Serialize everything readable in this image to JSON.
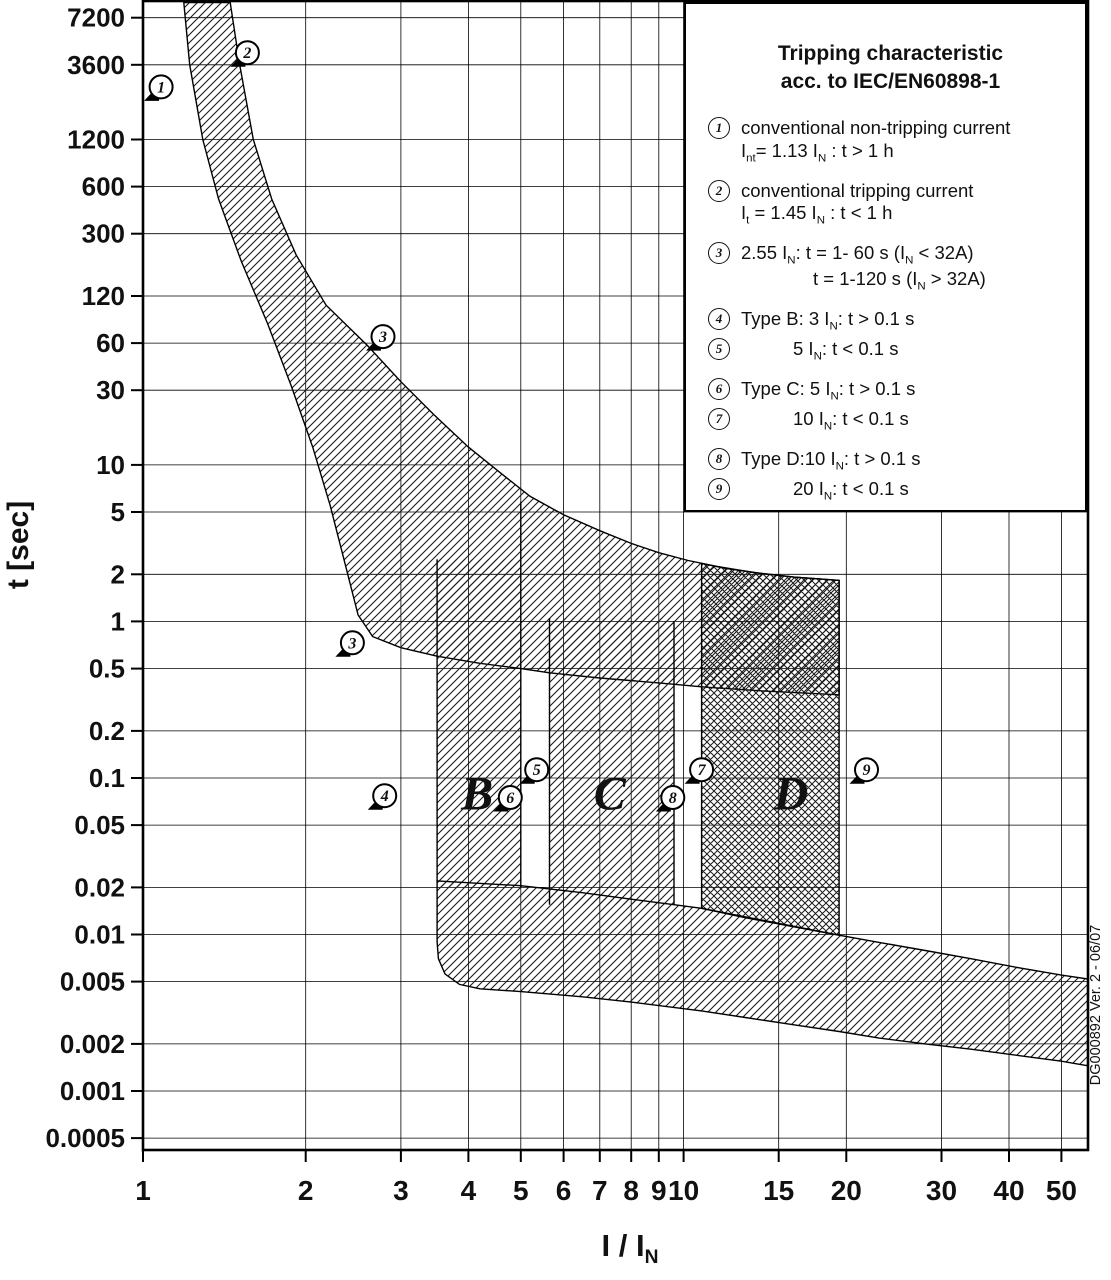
{
  "figure": {
    "watermark": "DG000892 Ver. 2 - 06/07"
  },
  "legend": {
    "title_line1": "Tripping characteristic",
    "title_line2": "acc. to IEC/EN60898-1",
    "items": [
      {
        "num": "1",
        "lines": [
          "conventional non-tripping current",
          "I_[nt]= 1.13 I_[N] : t > 1 h"
        ],
        "gap_before": false,
        "indent": false,
        "indent_line2": false
      },
      {
        "num": "2",
        "lines": [
          "conventional tripping current",
          "I_[t] = 1.45 I_[N] : t < 1 h"
        ],
        "gap_before": true,
        "indent": false,
        "indent_line2": false
      },
      {
        "num": "3",
        "lines": [
          "2.55 I_[N]: t = 1- 60 s (I_[N] < 32A)",
          "t = 1-120 s (I_[N] > 32A)"
        ],
        "gap_before": true,
        "indent": false,
        "indent_line2": true
      },
      {
        "num": "4",
        "lines": [
          "Type B: 3 I_[N]: t > 0.1 s"
        ],
        "gap_before": true,
        "indent": false,
        "indent_line2": false
      },
      {
        "num": "5",
        "lines": [
          "5 I_[N]: t < 0.1 s"
        ],
        "gap_before": false,
        "indent": true,
        "indent_line2": false
      },
      {
        "num": "6",
        "lines": [
          "Type C: 5 I_[N]: t > 0.1 s"
        ],
        "gap_before": true,
        "indent": false,
        "indent_line2": false
      },
      {
        "num": "7",
        "lines": [
          "10 I_[N]: t < 0.1 s"
        ],
        "gap_before": false,
        "indent": true,
        "indent_line2": false
      },
      {
        "num": "8",
        "lines": [
          "Type D:10 I_[N]: t > 0.1 s"
        ],
        "gap_before": true,
        "indent": false,
        "indent_line2": false
      },
      {
        "num": "9",
        "lines": [
          "20 I_[N]: t < 0.1 s"
        ],
        "gap_before": false,
        "indent": true,
        "indent_line2": false
      }
    ]
  },
  "chart_data": {
    "type": "area",
    "title": "Tripping characteristic acc. to IEC/EN60898-1",
    "xlabel": "I / I_[N]",
    "ylabel": "t [sec]",
    "x_scale": "log",
    "y_scale": "log",
    "xlim": [
      1,
      56
    ],
    "ylim": [
      0.00042,
      9200
    ],
    "grid": true,
    "x_ticks": [
      {
        "v": 1,
        "label": "1"
      },
      {
        "v": 2,
        "label": "2"
      },
      {
        "v": 3,
        "label": "3"
      },
      {
        "v": 4,
        "label": "4"
      },
      {
        "v": 5,
        "label": "5"
      },
      {
        "v": 6,
        "label": "6"
      },
      {
        "v": 7,
        "label": "7"
      },
      {
        "v": 8,
        "label": "8"
      },
      {
        "v": 9,
        "label": "9"
      },
      {
        "v": 10,
        "label": "10"
      },
      {
        "v": 15,
        "label": "15"
      },
      {
        "v": 20,
        "label": "20"
      },
      {
        "v": 30,
        "label": "30"
      },
      {
        "v": 40,
        "label": "40"
      },
      {
        "v": 50,
        "label": "50"
      }
    ],
    "y_ticks": [
      {
        "v": 7200,
        "label": "7200"
      },
      {
        "v": 3600,
        "label": "3600"
      },
      {
        "v": 1200,
        "label": "1200"
      },
      {
        "v": 600,
        "label": "600"
      },
      {
        "v": 300,
        "label": "300"
      },
      {
        "v": 120,
        "label": "120"
      },
      {
        "v": 60,
        "label": "60"
      },
      {
        "v": 30,
        "label": "30"
      },
      {
        "v": 10,
        "label": "10"
      },
      {
        "v": 5,
        "label": "5"
      },
      {
        "v": 2,
        "label": "2"
      },
      {
        "v": 1,
        "label": "1"
      },
      {
        "v": 0.5,
        "label": "0.5"
      },
      {
        "v": 0.2,
        "label": "0.2"
      },
      {
        "v": 0.1,
        "label": "0.1"
      },
      {
        "v": 0.05,
        "label": "0.05"
      },
      {
        "v": 0.02,
        "label": "0.02"
      },
      {
        "v": 0.01,
        "label": "0.01"
      },
      {
        "v": 0.005,
        "label": "0.005"
      },
      {
        "v": 0.002,
        "label": "0.002"
      },
      {
        "v": 0.001,
        "label": "0.001"
      },
      {
        "v": 0.0005,
        "label": "0.0005"
      }
    ],
    "types": [
      {
        "name": "B",
        "instantaneous_trip_range": "3 to 5 I_N"
      },
      {
        "name": "C",
        "instantaneous_trip_range": "5 to 10 I_N"
      },
      {
        "name": "D",
        "instantaneous_trip_range": "10 to 20 I_N"
      }
    ],
    "bands": {
      "thermal_lower": [
        [
          1.19,
          9000
        ],
        [
          1.22,
          3600
        ],
        [
          1.29,
          1200
        ],
        [
          1.38,
          500
        ],
        [
          1.52,
          200
        ],
        [
          1.7,
          80
        ],
        [
          1.88,
          32
        ],
        [
          2.06,
          13
        ],
        [
          2.22,
          5.5
        ],
        [
          2.36,
          2.4
        ],
        [
          2.5,
          1.1
        ],
        [
          2.66,
          0.8
        ],
        [
          3.0,
          0.68
        ],
        [
          3.5,
          0.6
        ],
        [
          4.2,
          0.54
        ],
        [
          5.0,
          0.5
        ],
        [
          5.65,
          0.47
        ],
        [
          7.0,
          0.435
        ],
        [
          9.0,
          0.405
        ],
        [
          11.0,
          0.38
        ],
        [
          14.0,
          0.36
        ],
        [
          19.4,
          0.34
        ]
      ],
      "thermal_upper": [
        [
          1.45,
          9000
        ],
        [
          1.51,
          3600
        ],
        [
          1.6,
          1200
        ],
        [
          1.73,
          500
        ],
        [
          1.92,
          220
        ],
        [
          2.18,
          105
        ],
        [
          2.6,
          58
        ],
        [
          3.0,
          34
        ],
        [
          3.45,
          21
        ],
        [
          4.0,
          13
        ],
        [
          4.6,
          8.8
        ],
        [
          5.2,
          6.3
        ],
        [
          6.0,
          4.8
        ],
        [
          7.0,
          3.8
        ],
        [
          8.0,
          3.15
        ],
        [
          9.0,
          2.75
        ],
        [
          10.2,
          2.45
        ],
        [
          11.5,
          2.25
        ],
        [
          13.5,
          2.05
        ],
        [
          16.0,
          1.92
        ],
        [
          19.4,
          1.83
        ]
      ],
      "type_b_strip": [
        [
          3.5,
          2.5
        ],
        [
          5.0,
          2.5
        ],
        [
          5.0,
          0.02
        ],
        [
          3.5,
          0.02
        ]
      ],
      "type_b_edges": [
        [
          [
            3.5,
            2.5
          ],
          [
            3.5,
            0.022
          ]
        ],
        [
          [
            5.0,
            5.8
          ],
          [
            5.0,
            0.02
          ]
        ]
      ],
      "type_c_strip": [
        [
          5.65,
          1.05
        ],
        [
          9.6,
          1.05
        ],
        [
          9.6,
          0.0155
        ],
        [
          5.65,
          0.0155
        ]
      ],
      "type_c_edges": [
        [
          [
            5.65,
            1.05
          ],
          [
            5.65,
            0.0155
          ]
        ],
        [
          [
            9.6,
            1.0
          ],
          [
            9.6,
            0.0155
          ]
        ]
      ],
      "type_d_strip": [
        [
          10.8,
          2.35
        ],
        [
          12.0,
          2.18
        ],
        [
          14.0,
          2.02
        ],
        [
          16.0,
          1.92
        ],
        [
          19.4,
          1.83
        ],
        [
          19.4,
          0.0099
        ],
        [
          10.8,
          0.0147
        ]
      ],
      "bottom_band": [
        [
          3.5,
          0.022
        ],
        [
          5.0,
          0.0205
        ],
        [
          6.5,
          0.0185
        ],
        [
          8.0,
          0.0168
        ],
        [
          9.6,
          0.0155
        ],
        [
          10.8,
          0.0147
        ],
        [
          13,
          0.0128
        ],
        [
          16,
          0.0112
        ],
        [
          19.4,
          0.0099
        ],
        [
          23,
          0.0089
        ],
        [
          28,
          0.0079
        ],
        [
          34,
          0.007
        ],
        [
          42,
          0.0061
        ],
        [
          50,
          0.0055
        ],
        [
          56,
          0.0052
        ],
        [
          56,
          0.00145
        ],
        [
          50,
          0.00155
        ],
        [
          42,
          0.00168
        ],
        [
          34,
          0.00185
        ],
        [
          28,
          0.002
        ],
        [
          23,
          0.00218
        ],
        [
          19.4,
          0.0024
        ],
        [
          16,
          0.00265
        ],
        [
          13,
          0.00295
        ],
        [
          10.8,
          0.00325
        ],
        [
          8.0,
          0.0037
        ],
        [
          6.5,
          0.004
        ],
        [
          5.0,
          0.00432
        ],
        [
          4.2,
          0.0045
        ],
        [
          3.85,
          0.0048
        ],
        [
          3.62,
          0.0056
        ],
        [
          3.52,
          0.007
        ],
        [
          3.5,
          0.009
        ]
      ]
    },
    "markers": [
      {
        "n": "1",
        "x": 1.08,
        "t": 2600
      },
      {
        "n": "2",
        "x": 1.56,
        "t": 4300
      },
      {
        "n": "3",
        "x": 2.78,
        "t": 66
      },
      {
        "n": "3",
        "x": 2.44,
        "t": 0.73
      },
      {
        "n": "4",
        "x": 2.8,
        "t": 0.077
      },
      {
        "n": "5",
        "x": 5.35,
        "t": 0.113
      },
      {
        "n": "6",
        "x": 4.78,
        "t": 0.075
      },
      {
        "n": "7",
        "x": 10.8,
        "t": 0.113
      },
      {
        "n": "8",
        "x": 9.55,
        "t": 0.075
      },
      {
        "n": "9",
        "x": 21.8,
        "t": 0.113
      }
    ],
    "region_labels": [
      {
        "text": "B",
        "x": 4.15,
        "t": 0.063
      },
      {
        "text": "C",
        "x": 7.3,
        "t": 0.063
      },
      {
        "text": "D",
        "x": 15.8,
        "t": 0.063
      }
    ]
  }
}
